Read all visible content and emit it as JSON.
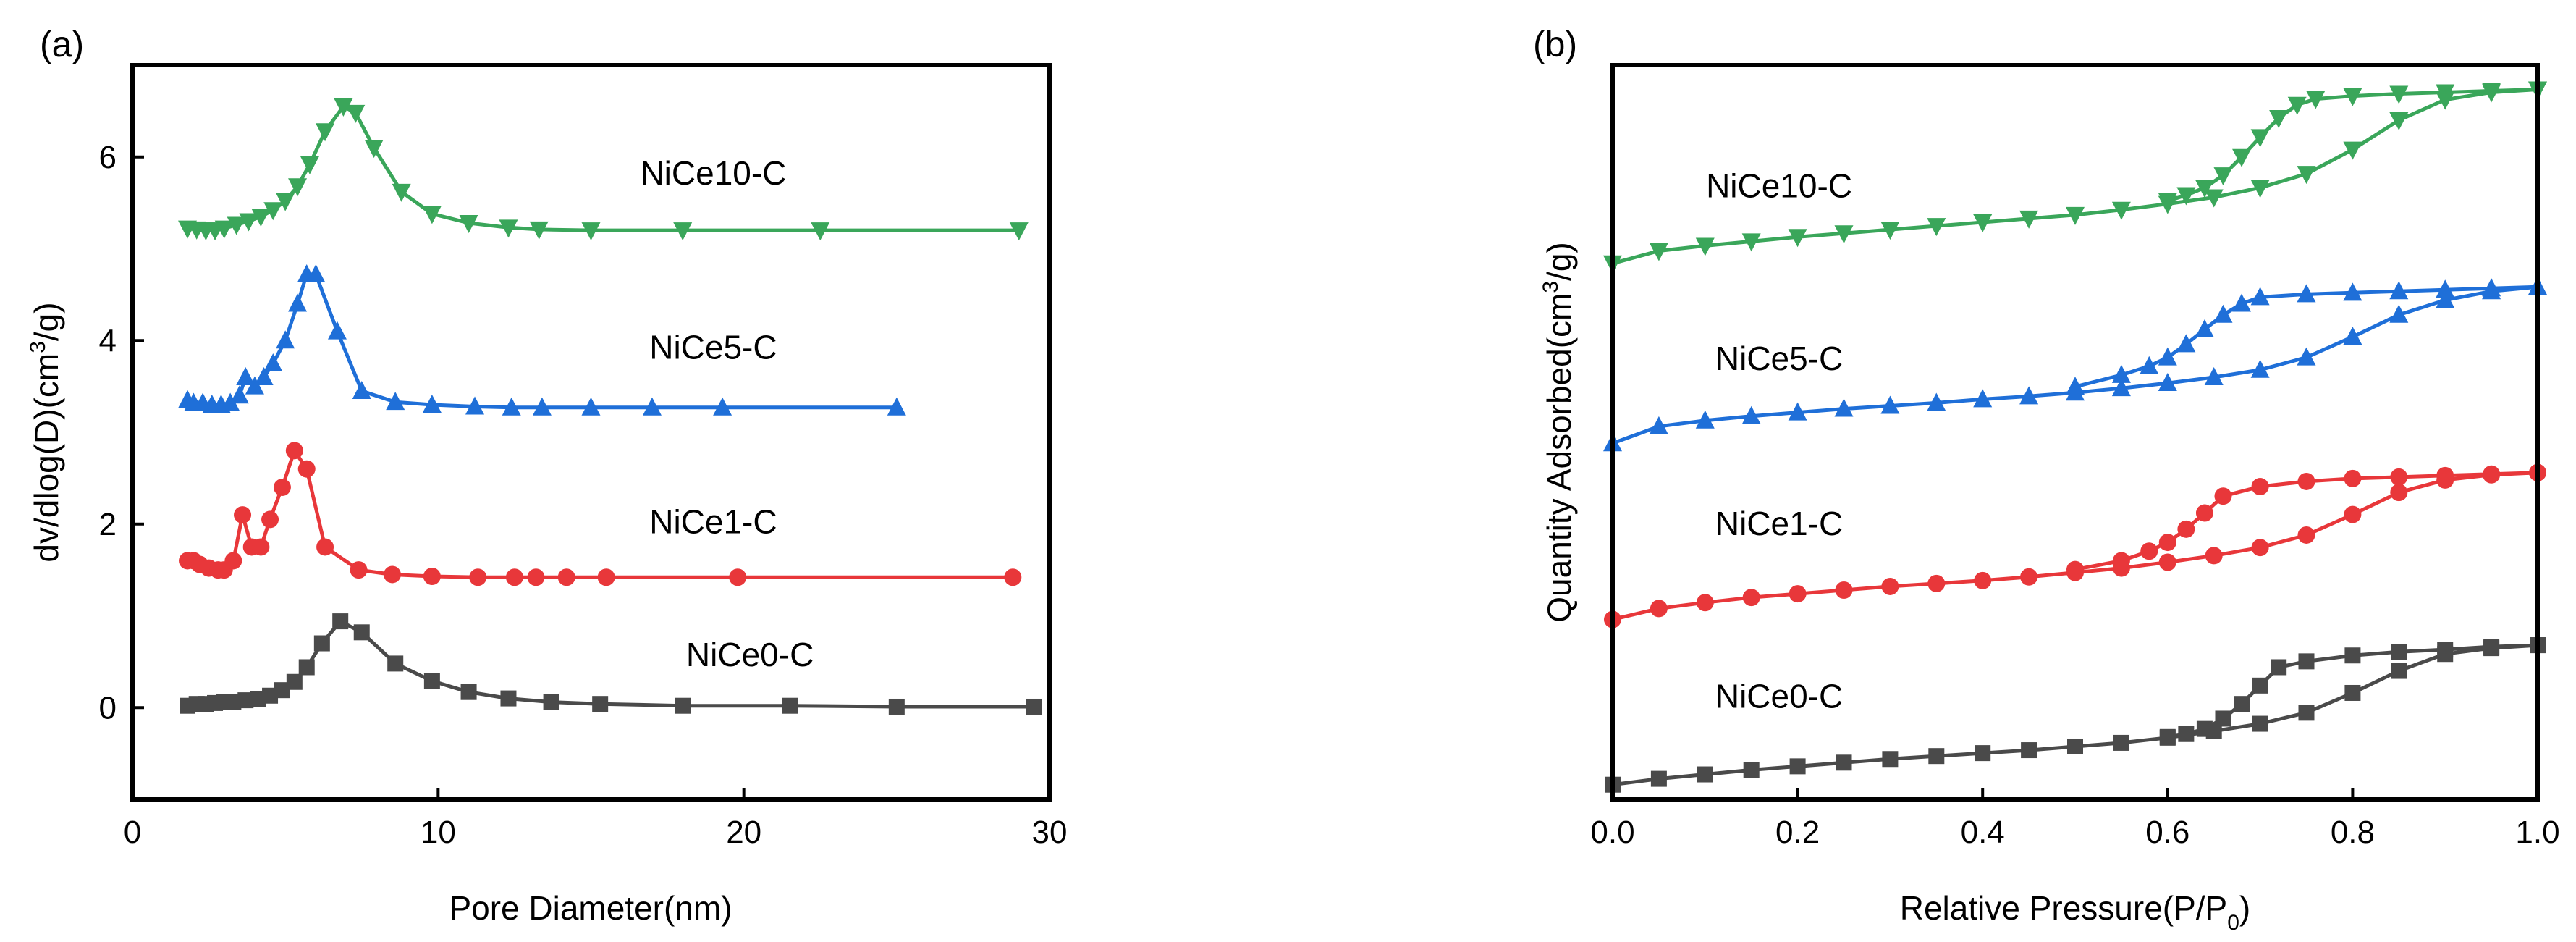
{
  "chart_data": [
    {
      "type": "line",
      "panel_label": "(a)",
      "title": "",
      "xlabel": "Pore Diameter(nm)",
      "ylabel_parts": {
        "before": "dv/dlog(D)(cm",
        "sup": "3",
        "after": "/g)"
      },
      "xlim": [
        0,
        30
      ],
      "ylim": [
        -1,
        7
      ],
      "xticks": [
        0,
        10,
        20,
        30
      ],
      "yticks": [
        0,
        2,
        4,
        6
      ],
      "grid": false,
      "legend": "inline labels",
      "series": [
        {
          "name": "NiCe0-C",
          "color": "#4a4a4a",
          "marker": "square",
          "label_at": [
            20.2,
            0.45
          ],
          "x": [
            1.8,
            2.1,
            2.4,
            2.7,
            3.0,
            3.3,
            3.7,
            4.1,
            4.5,
            4.9,
            5.3,
            5.7,
            6.2,
            6.8,
            7.5,
            8.6,
            9.8,
            11.0,
            12.3,
            13.7,
            15.3,
            18.0,
            21.5,
            25.0,
            29.5
          ],
          "y": [
            0.02,
            0.04,
            0.04,
            0.05,
            0.06,
            0.06,
            0.08,
            0.09,
            0.13,
            0.19,
            0.28,
            0.44,
            0.7,
            0.94,
            0.82,
            0.48,
            0.29,
            0.17,
            0.1,
            0.06,
            0.04,
            0.02,
            0.02,
            0.01,
            0.01
          ]
        },
        {
          "name": "NiCe1-C",
          "color": "#e8373a",
          "marker": "circle",
          "label_at": [
            19.0,
            1.9
          ],
          "x": [
            1.8,
            2.0,
            2.2,
            2.5,
            2.8,
            3.0,
            3.3,
            3.6,
            3.9,
            4.2,
            4.5,
            4.9,
            5.3,
            5.7,
            6.3,
            7.4,
            8.5,
            9.8,
            11.3,
            12.5,
            13.2,
            14.2,
            15.5,
            19.8,
            28.8
          ],
          "y": [
            1.6,
            1.6,
            1.56,
            1.52,
            1.5,
            1.5,
            1.6,
            2.1,
            1.75,
            1.75,
            2.05,
            2.4,
            2.8,
            2.6,
            1.75,
            1.5,
            1.45,
            1.43,
            1.42,
            1.42,
            1.42,
            1.42,
            1.42,
            1.42,
            1.42
          ]
        },
        {
          "name": "NiCe5-C",
          "color": "#1f6fd8",
          "marker": "triangle-up",
          "label_at": [
            19.0,
            3.8
          ],
          "x": [
            1.8,
            2.0,
            2.3,
            2.6,
            2.9,
            3.2,
            3.5,
            3.7,
            4.0,
            4.3,
            4.6,
            5.0,
            5.4,
            5.7,
            6.0,
            6.7,
            7.5,
            8.6,
            9.8,
            11.2,
            12.4,
            13.4,
            15.0,
            17.0,
            19.3,
            25.0
          ],
          "y": [
            3.35,
            3.32,
            3.32,
            3.3,
            3.3,
            3.32,
            3.4,
            3.6,
            3.5,
            3.6,
            3.75,
            4.0,
            4.4,
            4.72,
            4.72,
            4.1,
            3.45,
            3.33,
            3.3,
            3.28,
            3.27,
            3.27,
            3.27,
            3.27,
            3.27,
            3.27
          ]
        },
        {
          "name": "NiCe10-C",
          "color": "#3aa65a",
          "marker": "triangle-down",
          "label_at": [
            19.0,
            5.7
          ],
          "x": [
            1.8,
            2.1,
            2.4,
            2.7,
            3.0,
            3.4,
            3.8,
            4.2,
            4.6,
            5.0,
            5.4,
            5.8,
            6.3,
            6.9,
            7.3,
            7.9,
            8.8,
            9.8,
            11.0,
            12.3,
            13.3,
            15.0,
            18.0,
            22.5,
            29.0
          ],
          "y": [
            5.22,
            5.21,
            5.2,
            5.2,
            5.22,
            5.26,
            5.3,
            5.35,
            5.42,
            5.52,
            5.68,
            5.92,
            6.28,
            6.55,
            6.48,
            6.1,
            5.62,
            5.38,
            5.28,
            5.23,
            5.21,
            5.2,
            5.2,
            5.2,
            5.2
          ]
        }
      ]
    },
    {
      "type": "line",
      "panel_label": "(b)",
      "title": "",
      "xlabel_parts": {
        "before": "Relative Pressure(P/P",
        "sub": "0",
        "after": ")"
      },
      "ylabel_parts": {
        "before": "Quantity Adsorbed(cm",
        "sup": "3",
        "after": "/g)"
      },
      "xlim": [
        0.0,
        1.0
      ],
      "ylim": [
        0,
        100
      ],
      "xticks": [
        0.0,
        0.2,
        0.4,
        0.6,
        0.8,
        1.0
      ],
      "xtick_labels": [
        "0.0",
        "0.2",
        "0.4",
        "0.6",
        "0.8",
        "1.0"
      ],
      "yticks": [],
      "grid": false,
      "legend": "inline labels",
      "series": [
        {
          "name": "NiCe0-C",
          "color": "#4a4a4a",
          "marker": "square",
          "label_at": [
            0.18,
            12.5
          ],
          "adsorption": {
            "x": [
              0.0,
              0.05,
              0.1,
              0.15,
              0.2,
              0.25,
              0.3,
              0.35,
              0.4,
              0.45,
              0.5,
              0.55,
              0.6,
              0.65,
              0.7,
              0.75,
              0.8,
              0.85,
              0.9,
              0.95,
              1.0
            ],
            "y": [
              2.0,
              2.8,
              3.4,
              4.0,
              4.5,
              5.0,
              5.5,
              5.9,
              6.3,
              6.7,
              7.2,
              7.7,
              8.4,
              9.3,
              10.3,
              11.8,
              14.5,
              17.5,
              19.8,
              20.6,
              21.0
            ]
          },
          "desorption": {
            "x": [
              1.0,
              0.95,
              0.9,
              0.85,
              0.8,
              0.75,
              0.72,
              0.7,
              0.68,
              0.66,
              0.64,
              0.62,
              0.6
            ],
            "y": [
              21.0,
              20.8,
              20.4,
              20.1,
              19.6,
              18.8,
              18.0,
              15.5,
              13.0,
              11.0,
              9.6,
              8.9,
              8.5
            ]
          }
        },
        {
          "name": "NiCe1-C",
          "color": "#e8373a",
          "marker": "circle",
          "label_at": [
            0.18,
            36.0
          ],
          "adsorption": {
            "x": [
              0.0,
              0.05,
              0.1,
              0.15,
              0.2,
              0.25,
              0.3,
              0.35,
              0.4,
              0.45,
              0.5,
              0.55,
              0.6,
              0.65,
              0.7,
              0.75,
              0.8,
              0.85,
              0.9,
              0.95,
              1.0
            ],
            "y": [
              24.5,
              26.0,
              26.8,
              27.5,
              28.0,
              28.5,
              29.0,
              29.4,
              29.8,
              30.3,
              30.9,
              31.5,
              32.3,
              33.2,
              34.3,
              36.0,
              38.8,
              41.8,
              43.5,
              44.2,
              44.5
            ]
          },
          "desorption": {
            "x": [
              1.0,
              0.95,
              0.9,
              0.85,
              0.8,
              0.75,
              0.7,
              0.66,
              0.64,
              0.62,
              0.6,
              0.58,
              0.55,
              0.5
            ],
            "y": [
              44.5,
              44.3,
              44.1,
              43.9,
              43.7,
              43.3,
              42.6,
              41.3,
              39.0,
              36.8,
              35.0,
              33.8,
              32.5,
              31.3
            ]
          }
        },
        {
          "name": "NiCe5-C",
          "color": "#1f6fd8",
          "marker": "triangle-up",
          "label_at": [
            0.18,
            58.5
          ],
          "adsorption": {
            "x": [
              0.0,
              0.05,
              0.1,
              0.15,
              0.2,
              0.25,
              0.3,
              0.35,
              0.4,
              0.45,
              0.5,
              0.55,
              0.6,
              0.65,
              0.7,
              0.75,
              0.8,
              0.85,
              0.9,
              0.95,
              1.0
            ],
            "y": [
              48.5,
              50.8,
              51.6,
              52.2,
              52.7,
              53.2,
              53.6,
              54.0,
              54.5,
              54.9,
              55.4,
              56.0,
              56.7,
              57.5,
              58.5,
              60.2,
              63.0,
              66.0,
              68.0,
              69.2,
              69.8
            ]
          },
          "desorption": {
            "x": [
              1.0,
              0.95,
              0.9,
              0.85,
              0.8,
              0.75,
              0.7,
              0.68,
              0.66,
              0.64,
              0.62,
              0.6,
              0.58,
              0.55,
              0.5
            ],
            "y": [
              69.8,
              69.6,
              69.4,
              69.2,
              69.0,
              68.8,
              68.4,
              67.5,
              66.0,
              64.0,
              62.0,
              60.2,
              59.0,
              57.8,
              56.2
            ]
          }
        },
        {
          "name": "NiCe10-C",
          "color": "#3aa65a",
          "marker": "triangle-down",
          "label_at": [
            0.18,
            82.0
          ],
          "adsorption": {
            "x": [
              0.0,
              0.05,
              0.1,
              0.15,
              0.2,
              0.25,
              0.3,
              0.35,
              0.4,
              0.45,
              0.5,
              0.55,
              0.6,
              0.65,
              0.7,
              0.75,
              0.8,
              0.85,
              0.9,
              0.95,
              1.0
            ],
            "y": [
              73.0,
              74.7,
              75.4,
              76.0,
              76.6,
              77.1,
              77.6,
              78.1,
              78.6,
              79.1,
              79.6,
              80.3,
              81.1,
              82.0,
              83.3,
              85.2,
              88.5,
              92.5,
              95.3,
              96.3,
              96.7
            ]
          },
          "desorption": {
            "x": [
              1.0,
              0.95,
              0.9,
              0.85,
              0.8,
              0.76,
              0.74,
              0.72,
              0.7,
              0.68,
              0.66,
              0.64,
              0.62,
              0.6
            ],
            "y": [
              96.7,
              96.5,
              96.3,
              96.1,
              95.8,
              95.4,
              94.6,
              92.8,
              90.2,
              87.5,
              85.0,
              83.3,
              82.3,
              81.5
            ]
          }
        }
      ]
    }
  ]
}
